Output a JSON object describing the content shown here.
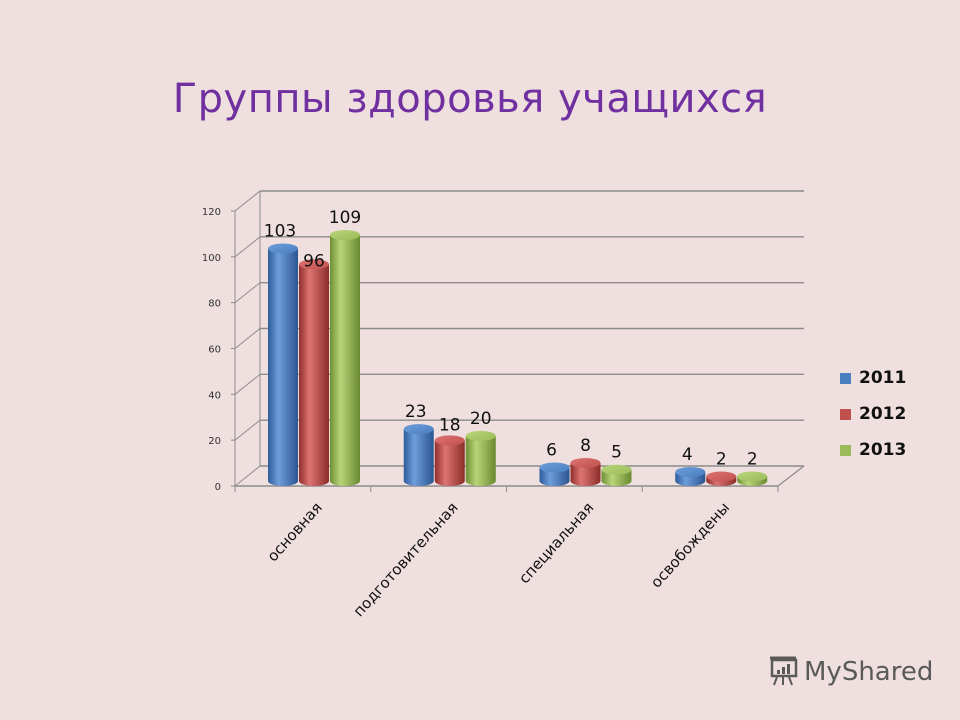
{
  "title": "Группы здоровья учащихся",
  "chart_data": {
    "type": "bar",
    "title": "Группы здоровья учащихся",
    "style": "3d-cylinder",
    "categories": [
      "основная",
      "подготовительная",
      "специальная",
      "освобождены"
    ],
    "series": [
      {
        "name": "2011",
        "color": "#4a7ebf",
        "values": [
          103,
          23,
          6,
          4
        ]
      },
      {
        "name": "2012",
        "color": "#c0504d",
        "values": [
          96,
          18,
          8,
          2
        ]
      },
      {
        "name": "2013",
        "color": "#9bbb59",
        "values": [
          109,
          20,
          5,
          2
        ]
      }
    ],
    "xlabel": "",
    "ylabel": "",
    "ylim": [
      0,
      120
    ],
    "yticks": [
      0,
      20,
      40,
      60,
      80,
      100,
      120
    ],
    "grid": true,
    "legend_position": "right",
    "data_labels": true
  },
  "legend": {
    "items": [
      {
        "label": "2011",
        "color": "#4a7ebf"
      },
      {
        "label": "2012",
        "color": "#c0504d"
      },
      {
        "label": "2013",
        "color": "#9bbb59"
      }
    ]
  },
  "watermark": {
    "text": "MyShared"
  }
}
